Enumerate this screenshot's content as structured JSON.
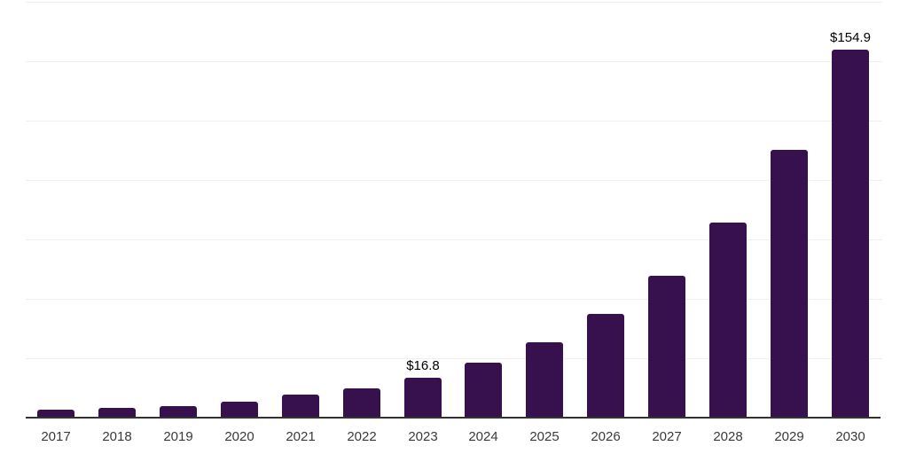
{
  "chart_data": {
    "type": "bar",
    "title": "",
    "xlabel": "",
    "ylabel": "",
    "categories": [
      "2017",
      "2018",
      "2019",
      "2020",
      "2021",
      "2022",
      "2023",
      "2024",
      "2025",
      "2026",
      "2027",
      "2028",
      "2029",
      "2030"
    ],
    "values": [
      3.4,
      4.1,
      4.9,
      6.9,
      9.7,
      12.2,
      16.8,
      23.1,
      31.7,
      43.5,
      59.8,
      82.1,
      112.8,
      154.9
    ],
    "data_labels": [
      null,
      null,
      null,
      null,
      null,
      null,
      "$16.8",
      null,
      null,
      null,
      null,
      null,
      null,
      "$154.9"
    ],
    "ylim": [
      0,
      175
    ],
    "gridline_step": 25,
    "grid": true,
    "legend": false,
    "y_tick_labels_visible": false,
    "colors": {
      "bar": "#36114e",
      "gridline": "#efefef",
      "axis_line": "#333333",
      "tick_label": "#3a3a3a",
      "data_label": "#000000",
      "background": "#ffffff"
    }
  }
}
